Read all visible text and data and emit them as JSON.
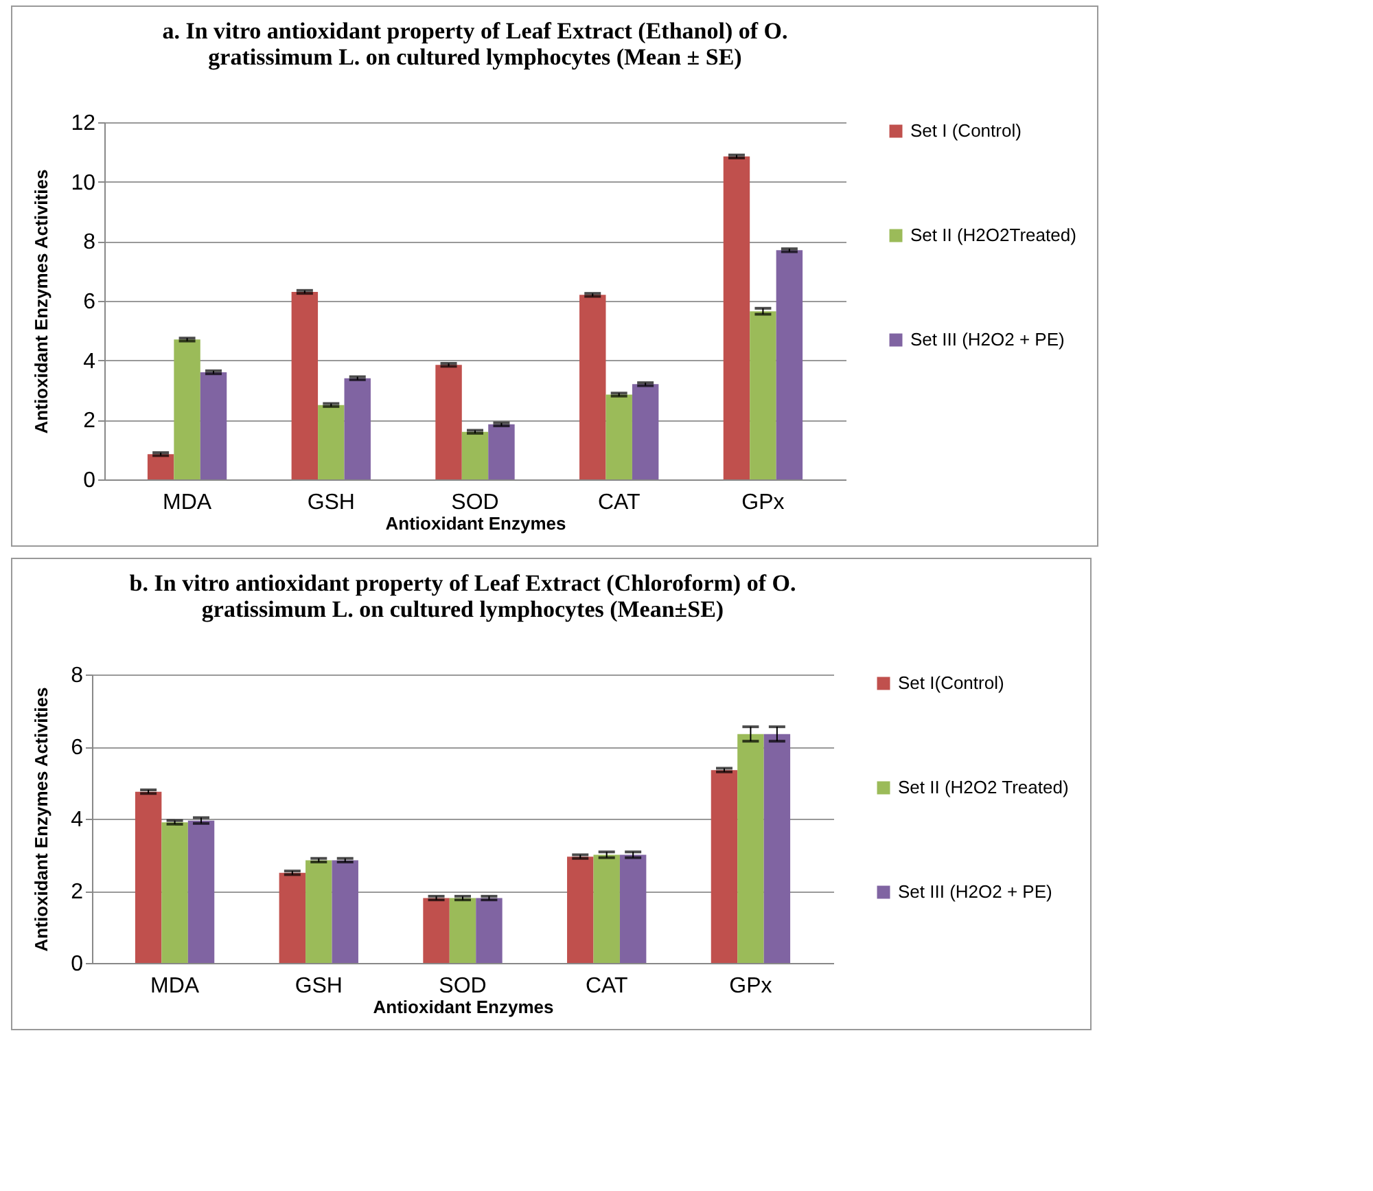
{
  "chart_data": [
    {
      "type": "bar",
      "title": "a.   In vitro antioxidant property of Leaf Extract (Ethanol) of  O. gratissimum L. on cultured lymphocytes (Mean ± SE)",
      "xlabel": "Antioxidant Enzymes",
      "ylabel": "Antioxidant Enzymes Activities",
      "categories": [
        "MDA",
        "GSH",
        "SOD",
        "CAT",
        "GPx"
      ],
      "series": [
        {
          "name": "Set I (Control)",
          "color": "#c0504d",
          "values": [
            0.85,
            6.3,
            3.85,
            6.2,
            10.85
          ],
          "errors": [
            0.05,
            0.05,
            0.05,
            0.05,
            0.05
          ]
        },
        {
          "name": "Set II (H2O2Treated)",
          "color": "#9bbb59",
          "values": [
            4.7,
            2.5,
            1.6,
            2.85,
            5.65
          ],
          "errors": [
            0.05,
            0.05,
            0.05,
            0.05,
            0.1
          ]
        },
        {
          "name": "Set III (H2O2 + PE)",
          "color": "#8064a2",
          "values": [
            3.6,
            3.4,
            1.85,
            3.2,
            7.7
          ],
          "errors": [
            0.05,
            0.05,
            0.05,
            0.05,
            0.05
          ]
        }
      ],
      "ylim": [
        0,
        12
      ],
      "yticks": [
        0,
        2,
        4,
        6,
        8,
        10,
        12
      ],
      "grid": "y",
      "legend": "right"
    },
    {
      "type": "bar",
      "title": "b.  In vitro antioxidant property of Leaf Extract (Chloroform) of O. gratissimum L. on cultured lymphocytes (Mean±SE)",
      "xlabel": "Antioxidant Enzymes",
      "ylabel": "Antioxidant Enzymes Activities",
      "categories": [
        "MDA",
        "GSH",
        "SOD",
        "CAT",
        "GPx"
      ],
      "series": [
        {
          "name": "Set I(Control)",
          "color": "#c0504d",
          "values": [
            4.75,
            2.5,
            1.8,
            2.95,
            5.35
          ],
          "errors": [
            0.05,
            0.05,
            0.05,
            0.05,
            0.05
          ]
        },
        {
          "name": "Set II (H2O2 Treated)",
          "color": "#9bbb59",
          "values": [
            3.9,
            2.85,
            1.8,
            3.0,
            6.35
          ],
          "errors": [
            0.05,
            0.05,
            0.05,
            0.08,
            0.2
          ]
        },
        {
          "name": "Set III (H2O2 + PE)",
          "color": "#8064a2",
          "values": [
            3.95,
            2.85,
            1.8,
            3.0,
            6.35
          ],
          "errors": [
            0.08,
            0.05,
            0.05,
            0.08,
            0.2
          ]
        }
      ],
      "ylim": [
        0,
        8
      ],
      "yticks": [
        0,
        2,
        4,
        6,
        8
      ],
      "grid": "y",
      "legend": "right"
    }
  ]
}
